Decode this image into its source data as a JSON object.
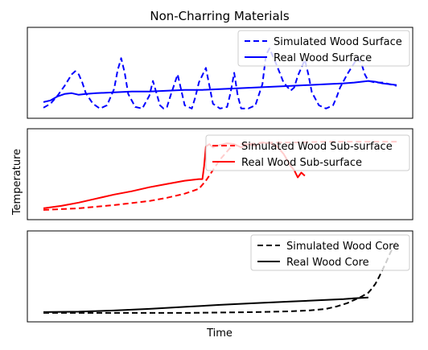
{
  "figure": {
    "title": "Non-Charring Materials",
    "xlabel": "Time",
    "ylabel": "Temperature"
  },
  "chart_data": [
    {
      "type": "line",
      "title": "",
      "xlim": [
        0,
        100
      ],
      "ylim": [
        0,
        100
      ],
      "grid": false,
      "legend": "top-right",
      "series": [
        {
          "name": "Simulated Wood Surface",
          "style": "dashed",
          "color": "#0000ff",
          "x": [
            0,
            2,
            4,
            6,
            8,
            9,
            10,
            11,
            12,
            14,
            16,
            18,
            20,
            21,
            22,
            23,
            24,
            26,
            28,
            30,
            31,
            32,
            33,
            34,
            35,
            36,
            38,
            40,
            42,
            43,
            44,
            46,
            48,
            50,
            52,
            53,
            54,
            55,
            56,
            58,
            60,
            62,
            63,
            64,
            66,
            68,
            70,
            71,
            72,
            74,
            75,
            76,
            78,
            80,
            82,
            83,
            84,
            86,
            88,
            89,
            90,
            91,
            92,
            94,
            96,
            98,
            100
          ],
          "y": [
            7,
            12,
            22,
            34,
            48,
            52,
            48,
            38,
            25,
            12,
            6,
            10,
            30,
            53,
            68,
            50,
            24,
            8,
            6,
            22,
            40,
            25,
            10,
            6,
            8,
            22,
            48,
            10,
            6,
            20,
            38,
            56,
            12,
            6,
            8,
            26,
            50,
            22,
            6,
            6,
            10,
            36,
            72,
            80,
            60,
            38,
            28,
            32,
            46,
            66,
            48,
            26,
            10,
            6,
            10,
            20,
            32,
            48,
            62,
            68,
            62,
            48,
            40,
            38,
            38,
            36,
            34
          ]
        },
        {
          "name": "Real Wood Surface",
          "style": "solid",
          "color": "#0000ff",
          "x": [
            0,
            2,
            4,
            6,
            8,
            10,
            12,
            15,
            20,
            25,
            30,
            35,
            40,
            45,
            50,
            55,
            60,
            65,
            70,
            75,
            80,
            85,
            88,
            90,
            92,
            94,
            96,
            98,
            100
          ],
          "y": [
            14,
            16,
            21,
            24,
            25,
            23,
            24,
            25,
            26,
            27,
            27,
            28,
            29,
            29,
            30,
            31,
            32,
            33,
            34,
            35,
            36,
            37,
            38,
            39,
            40,
            39,
            37,
            36,
            35
          ]
        }
      ]
    },
    {
      "type": "line",
      "title": "",
      "xlim": [
        0,
        100
      ],
      "ylim": [
        0,
        100
      ],
      "grid": false,
      "legend": "top-right",
      "series": [
        {
          "name": "Simulated Wood Sub-surface",
          "style": "dashed",
          "color": "#ff0000",
          "x": [
            0,
            10,
            20,
            30,
            35,
            40,
            44,
            46,
            48,
            50,
            52,
            53,
            54,
            55,
            56,
            58,
            62,
            70,
            80,
            90,
            95,
            100
          ],
          "y": [
            6,
            8,
            12,
            17,
            21,
            26,
            32,
            42,
            55,
            68,
            78,
            83,
            86,
            85,
            87,
            87,
            89,
            89,
            90,
            90,
            90,
            90
          ]
        },
        {
          "name": "Real Wood Sub-surface",
          "style": "solid",
          "color": "#ff0000",
          "x": [
            0,
            5,
            10,
            15,
            20,
            25,
            30,
            35,
            40,
            44,
            45,
            45.5,
            46,
            47,
            48,
            50,
            52,
            54,
            56,
            58,
            60,
            62,
            64,
            66,
            68,
            70,
            71,
            72,
            73,
            74
          ],
          "y": [
            8,
            11,
            15,
            20,
            25,
            29,
            34,
            38,
            42,
            44,
            44,
            60,
            84,
            87,
            83,
            86,
            88,
            87,
            83,
            87,
            85,
            89,
            88,
            85,
            75,
            60,
            55,
            46,
            52,
            48
          ]
        }
      ]
    },
    {
      "type": "line",
      "title": "",
      "xlim": [
        0,
        100
      ],
      "ylim": [
        0,
        100
      ],
      "grid": false,
      "legend": "top-right",
      "series": [
        {
          "name": "Simulated Wood Core",
          "style": "dashed",
          "color": "#000000",
          "x": [
            0,
            10,
            20,
            30,
            40,
            50,
            60,
            70,
            75,
            80,
            83,
            86,
            88,
            90,
            92,
            93,
            94,
            95,
            96,
            97,
            98,
            99,
            100
          ],
          "y": [
            5,
            5,
            5,
            5,
            5,
            5.5,
            6,
            7,
            8,
            10,
            13,
            17,
            21,
            25,
            30,
            35,
            41,
            49,
            58,
            67,
            77,
            86,
            93
          ]
        },
        {
          "name": "Real Wood Core",
          "style": "solid",
          "color": "#000000",
          "x": [
            0,
            10,
            20,
            30,
            40,
            50,
            60,
            70,
            80,
            85,
            88,
            90,
            92
          ],
          "y": [
            6,
            6.5,
            8,
            10,
            12.5,
            15,
            17,
            19,
            21,
            22,
            23,
            23.5,
            24
          ]
        }
      ]
    }
  ]
}
